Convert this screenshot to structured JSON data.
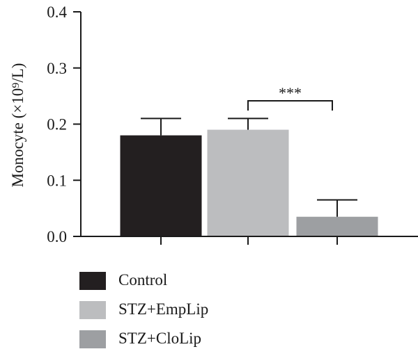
{
  "chart_data": {
    "type": "bar",
    "categories": [
      "Control",
      "STZ+EmpLip",
      "STZ+CloLip"
    ],
    "values": [
      0.18,
      0.19,
      0.035
    ],
    "error_bars": [
      0.03,
      0.02,
      0.03
    ],
    "colors": [
      "#231f20",
      "#bcbdbf",
      "#9d9fa2"
    ],
    "ylabel": "Monocyte (×10⁹/L)",
    "ylim": [
      0,
      0.4
    ],
    "yticks": [
      "0.0",
      "0.1",
      "0.2",
      "0.3",
      "0.4"
    ],
    "ytick_values": [
      0,
      0.1,
      0.2,
      0.3,
      0.4
    ],
    "annotations": [
      {
        "text": "***",
        "between": [
          "STZ+EmpLip",
          "STZ+CloLip"
        ]
      }
    ],
    "grid": false,
    "legend_position": "bottom-left"
  },
  "legend": {
    "items": [
      {
        "label": "Control",
        "color": "#231f20"
      },
      {
        "label": "STZ+EmpLip",
        "color": "#bcbdbf"
      },
      {
        "label": "STZ+CloLip",
        "color": "#9d9fa2"
      }
    ]
  }
}
